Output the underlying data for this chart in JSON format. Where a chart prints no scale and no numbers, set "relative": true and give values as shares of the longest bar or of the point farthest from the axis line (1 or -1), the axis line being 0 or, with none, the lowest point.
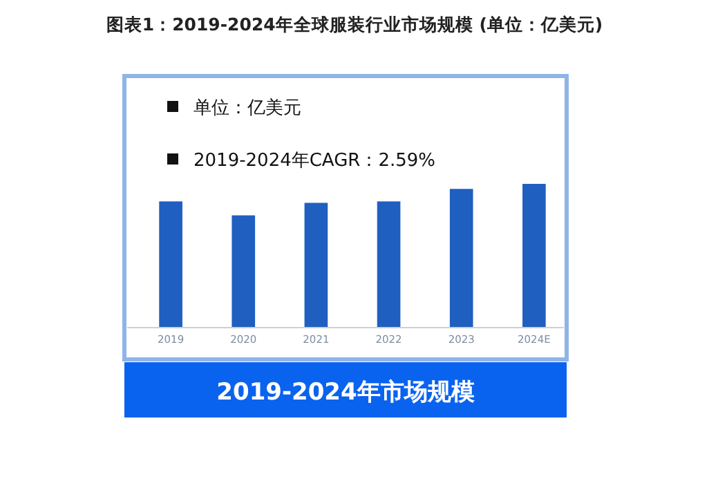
{
  "chart_data": {
    "type": "bar",
    "title": "图表1：2019-2024年全球服装行业市场规模 (单位：亿美元)",
    "categories": [
      "2019",
      "2020",
      "2021",
      "2022",
      "2023",
      "2024E"
    ],
    "values": [
      0.878,
      0.781,
      0.868,
      0.878,
      0.965,
      1
    ],
    "color": "#1f5fc0",
    "relative": true,
    "annotations": [
      "单位：亿美元",
      "2019-2024年CAGR：2.59%",
      "2019-2024年市场规模"
    ]
  }
}
